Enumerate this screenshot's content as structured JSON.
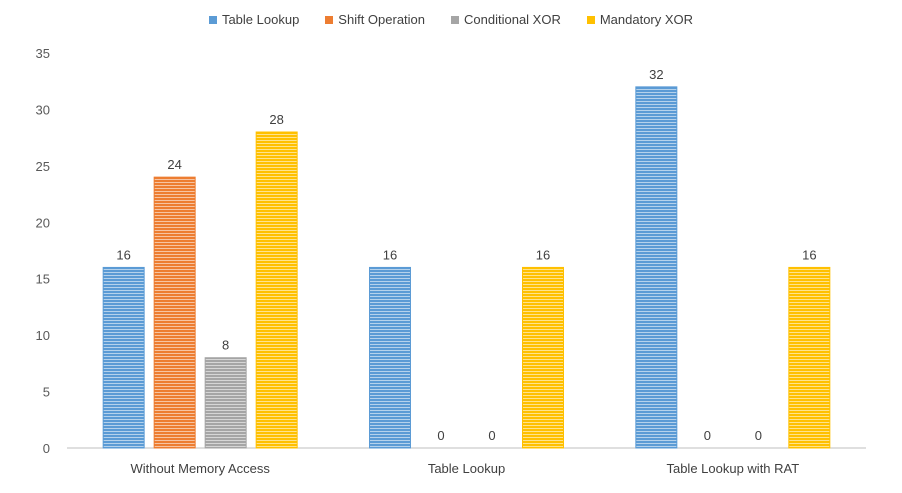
{
  "chart_data": {
    "type": "bar",
    "title": "",
    "xlabel": "",
    "ylabel": "",
    "categories": [
      "Without Memory Access",
      "Table Lookup",
      "Table Lookup with RAT"
    ],
    "series": [
      {
        "name": "Table Lookup",
        "values": [
          16,
          16,
          32
        ],
        "color": "#5B9BD5"
      },
      {
        "name": "Shift Operation",
        "values": [
          24,
          0,
          0
        ],
        "color": "#ED7D31"
      },
      {
        "name": "Conditional XOR",
        "values": [
          8,
          0,
          0
        ],
        "color": "#A5A5A5"
      },
      {
        "name": "Mandatory XOR",
        "values": [
          28,
          16,
          16
        ],
        "color": "#FFC000"
      }
    ],
    "ylim": [
      0,
      35
    ],
    "yticks": [
      0,
      5,
      10,
      15,
      20,
      25,
      30,
      35
    ],
    "grid": false,
    "legend_position": "top",
    "data_labels": true
  }
}
